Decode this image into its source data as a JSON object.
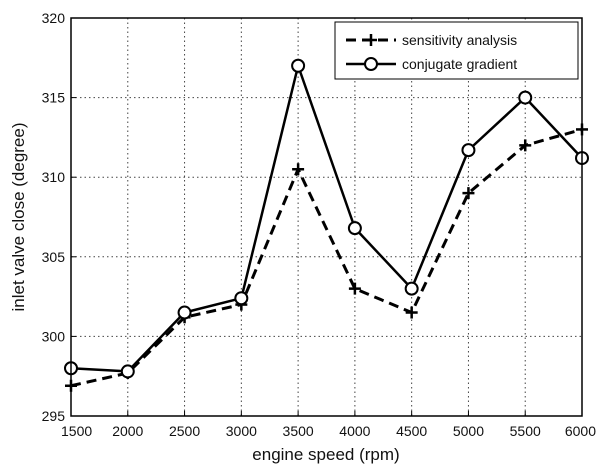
{
  "chart_data": {
    "type": "line",
    "xlabel": "engine speed (rpm)",
    "ylabel": "inlet valve close (degree)",
    "x": [
      1500,
      2000,
      2500,
      3000,
      3500,
      4000,
      4500,
      5000,
      5500,
      6000
    ],
    "xticks": [
      "1500",
      "2000",
      "2500",
      "3000",
      "3500",
      "4000",
      "4500",
      "5000",
      "5500",
      "6000"
    ],
    "yticks": [
      "295",
      "300",
      "305",
      "310",
      "315",
      "320"
    ],
    "xlim": [
      1500,
      6000
    ],
    "ylim": [
      295,
      320
    ],
    "grid": true,
    "legend_position": "top-right",
    "series": [
      {
        "name": "sensitivity analysis",
        "style": "dashed",
        "marker": "plus",
        "color": "#000000",
        "values": [
          296.9,
          297.7,
          301.2,
          302.0,
          310.5,
          303.0,
          301.5,
          309.0,
          312.0,
          313.0
        ]
      },
      {
        "name": "conjugate gradient",
        "style": "solid",
        "marker": "circle",
        "color": "#000000",
        "values": [
          298.0,
          297.8,
          301.5,
          302.4,
          317.0,
          306.8,
          303.0,
          311.7,
          315.0,
          311.2
        ]
      }
    ]
  }
}
